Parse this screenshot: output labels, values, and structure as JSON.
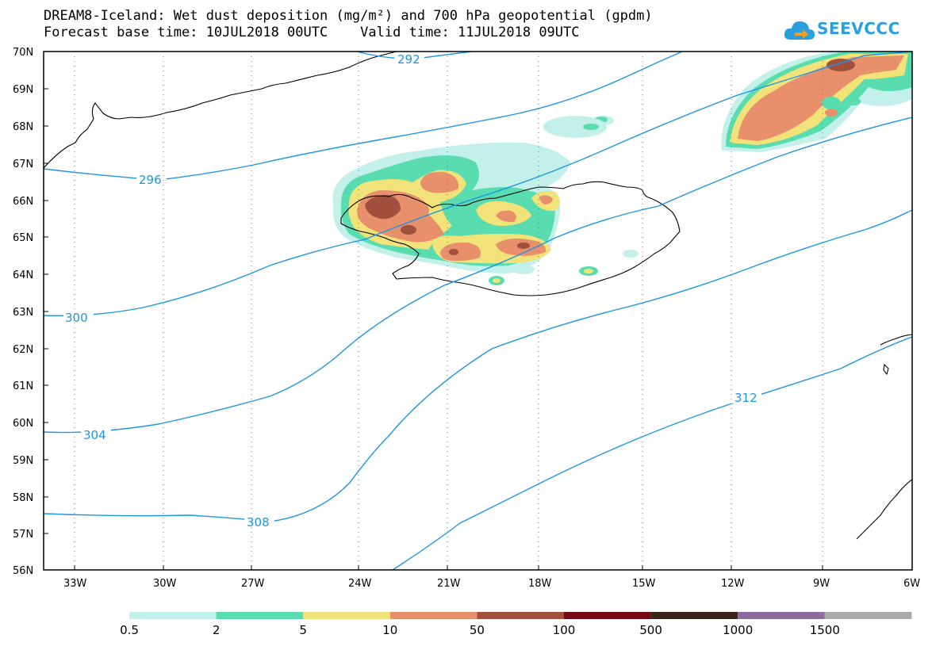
{
  "header": {
    "title_line1": "DREAM8-Iceland: Wet dust deposition (mg/m²) and 700 hPa geopotential (gpdm)",
    "title_line2": "Forecast base time: 10JUL2018 00UTC    Valid time: 11JUL2018 09UTC"
  },
  "logo": {
    "text": "SEEVCCC",
    "icon": "cloud-arrow-icon",
    "color": "#2a9fe0"
  },
  "map": {
    "lat_labels": [
      "70N",
      "69N",
      "68N",
      "67N",
      "66N",
      "65N",
      "64N",
      "63N",
      "62N",
      "61N",
      "60N",
      "59N",
      "58N",
      "57N",
      "56N"
    ],
    "lon_labels": [
      "33W",
      "30W",
      "27W",
      "24W",
      "21W",
      "18W",
      "15W",
      "12W",
      "9W",
      "6W"
    ],
    "contour_color": "#1e96e6",
    "contours": [
      {
        "value": "292",
        "label": "292"
      },
      {
        "value": "296",
        "label": "296"
      },
      {
        "value": "300",
        "label": "300"
      },
      {
        "value": "304",
        "label": "304"
      },
      {
        "value": "308",
        "label": "308"
      },
      {
        "value": "312",
        "label": "312"
      }
    ]
  },
  "legend": {
    "colors": [
      "#c4f0ec",
      "#58dcb0",
      "#f2e27a",
      "#e8906c",
      "#a0503c",
      "#780818",
      "#382418",
      "#8c6c9c",
      "#aaaaaa"
    ],
    "labels": [
      "0.5",
      "2",
      "5",
      "10",
      "50",
      "100",
      "500",
      "1000",
      "1500"
    ]
  }
}
